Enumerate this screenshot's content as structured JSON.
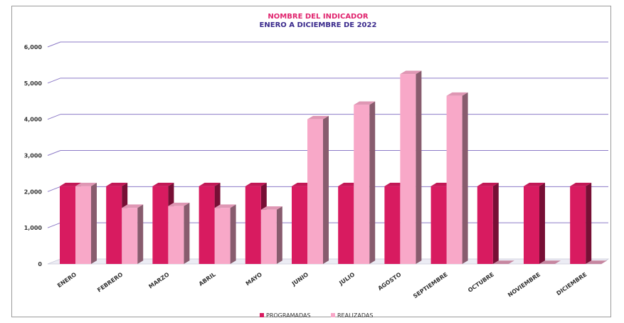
{
  "chart_data": {
    "type": "bar",
    "title": "NOMBRE DEL INDICADOR",
    "subtitle": "ENERO A DICIEMBRE DE 2022",
    "categories": [
      "ENERO",
      "FEBRERO",
      "MARZO",
      "ABRIL",
      "MAYO",
      "JUNIO",
      "JULIO",
      "AGOSTO",
      "SEPTIEMBRE",
      "OCTUBRE",
      "NOVIEMBRE",
      "DICIEMBRE"
    ],
    "series": [
      {
        "name": "PROGRAMADAS",
        "color": "#d81b60",
        "values": [
          2150,
          2150,
          2150,
          2150,
          2150,
          2150,
          2150,
          2150,
          2150,
          2150,
          2150,
          2150
        ]
      },
      {
        "name": "REALIZADAS",
        "color": "#f8a8c8",
        "values": [
          2150,
          1550,
          1600,
          1550,
          1500,
          4000,
          4400,
          5250,
          4650,
          0,
          0,
          0
        ]
      }
    ],
    "ylim": [
      0,
      6000
    ],
    "yticks": [
      "0",
      "1,000",
      "2,000",
      "3,000",
      "4,000",
      "5,000",
      "6,000"
    ],
    "grid": true,
    "legend": "bottom"
  }
}
